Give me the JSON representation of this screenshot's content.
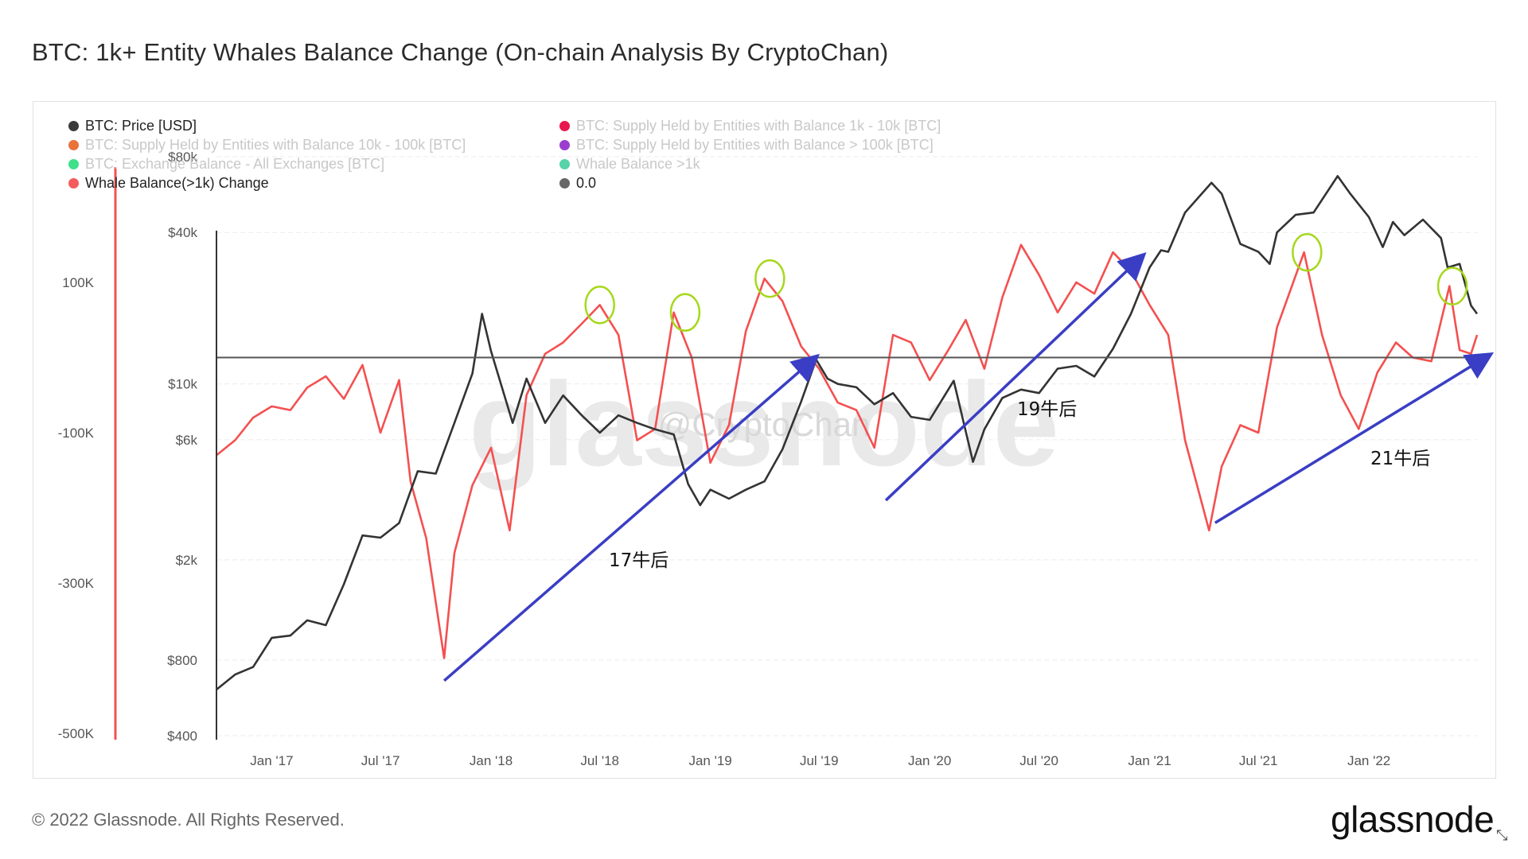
{
  "title": "BTC: 1k+ Entity Whales Balance Change (On-chain Analysis By CryptoChan)",
  "legend": {
    "left": [
      {
        "label": "BTC: Price [USD]",
        "color": "#3a3a3a",
        "faded": false
      },
      {
        "label": "BTC: Supply Held by Entities with Balance 10k - 100k [BTC]",
        "color": "#e8743b",
        "faded": true
      },
      {
        "label": "BTC: Exchange Balance - All Exchanges [BTC]",
        "color": "#3ee08a",
        "faded": true
      },
      {
        "label": "Whale Balance(>1k) Change",
        "color": "#f45b5b",
        "faded": false
      }
    ],
    "right": [
      {
        "label": "BTC: Supply Held by Entities with Balance 1k - 10k [BTC]",
        "color": "#e8174f",
        "faded": true
      },
      {
        "label": "BTC: Supply Held by Entities with Balance > 100k [BTC]",
        "color": "#9b3ecf",
        "faded": true
      },
      {
        "label": "Whale Balance >1k",
        "color": "#56d3a8",
        "faded": true
      },
      {
        "label": "0.0",
        "color": "#666666",
        "faded": false
      }
    ]
  },
  "watermark": {
    "text": "glassnode",
    "handle": "@CryptoChan"
  },
  "footer": {
    "copyright": "© 2022 Glassnode. All Rights Reserved.",
    "brand": "glassnode"
  },
  "colors": {
    "price": "#333333",
    "whale": "#f45050",
    "arrow": "#3a3ec4",
    "circle": "#a6d81c",
    "zeroline": "#555555"
  },
  "chart_data": {
    "type": "line",
    "x_ticks": [
      "Jan '17",
      "Jul '17",
      "Jan '18",
      "Jul '18",
      "Jan '19",
      "Jul '19",
      "Jan '20",
      "Jul '20",
      "Jan '21",
      "Jul '21",
      "Jan '22"
    ],
    "x_range": [
      "2016-10-01",
      "2022-06-30"
    ],
    "y_left_price": {
      "ticks": [
        "$400",
        "$800",
        "$2k",
        "$6k",
        "$10k",
        "$40k",
        "$80k"
      ],
      "values": [
        400,
        800,
        2000,
        6000,
        10000,
        40000,
        80000
      ],
      "scale": "log"
    },
    "y_left_change": {
      "ticks": [
        "100K",
        "-100K",
        "-300K",
        "-500K"
      ],
      "values": [
        100000,
        -100000,
        -300000,
        -500000
      ],
      "zero_line": 0
    },
    "series": [
      {
        "name": "BTC: Price [USD]",
        "points": [
          [
            "2016-10-01",
            610
          ],
          [
            "2016-11-01",
            700
          ],
          [
            "2016-12-01",
            750
          ],
          [
            "2017-01-01",
            980
          ],
          [
            "2017-02-01",
            1000
          ],
          [
            "2017-03-01",
            1150
          ],
          [
            "2017-04-01",
            1100
          ],
          [
            "2017-05-01",
            1600
          ],
          [
            "2017-06-01",
            2500
          ],
          [
            "2017-07-01",
            2450
          ],
          [
            "2017-08-01",
            2800
          ],
          [
            "2017-09-01",
            4500
          ],
          [
            "2017-10-01",
            4400
          ],
          [
            "2017-11-01",
            7000
          ],
          [
            "2017-12-01",
            11000
          ],
          [
            "2017-12-17",
            19000
          ],
          [
            "2018-01-01",
            13500
          ],
          [
            "2018-02-06",
            7000
          ],
          [
            "2018-03-01",
            10500
          ],
          [
            "2018-04-01",
            7000
          ],
          [
            "2018-05-01",
            9000
          ],
          [
            "2018-06-01",
            7500
          ],
          [
            "2018-07-01",
            6400
          ],
          [
            "2018-08-01",
            7500
          ],
          [
            "2018-09-01",
            7000
          ],
          [
            "2018-10-01",
            6600
          ],
          [
            "2018-11-01",
            6300
          ],
          [
            "2018-11-25",
            4000
          ],
          [
            "2018-12-15",
            3300
          ],
          [
            "2019-01-01",
            3800
          ],
          [
            "2019-02-01",
            3500
          ],
          [
            "2019-03-01",
            3800
          ],
          [
            "2019-04-01",
            4100
          ],
          [
            "2019-05-01",
            5500
          ],
          [
            "2019-06-01",
            8500
          ],
          [
            "2019-06-26",
            12500
          ],
          [
            "2019-07-15",
            10500
          ],
          [
            "2019-08-01",
            10000
          ],
          [
            "2019-09-01",
            9700
          ],
          [
            "2019-10-01",
            8300
          ],
          [
            "2019-11-01",
            9200
          ],
          [
            "2019-12-01",
            7400
          ],
          [
            "2020-01-01",
            7200
          ],
          [
            "2020-02-10",
            10300
          ],
          [
            "2020-03-13",
            4900
          ],
          [
            "2020-04-01",
            6600
          ],
          [
            "2020-05-01",
            8800
          ],
          [
            "2020-06-01",
            9500
          ],
          [
            "2020-07-01",
            9200
          ],
          [
            "2020-08-01",
            11500
          ],
          [
            "2020-09-01",
            11800
          ],
          [
            "2020-10-01",
            10700
          ],
          [
            "2020-11-01",
            13800
          ],
          [
            "2020-12-01",
            19000
          ],
          [
            "2021-01-01",
            29000
          ],
          [
            "2021-01-20",
            34000
          ],
          [
            "2021-02-01",
            33500
          ],
          [
            "2021-03-01",
            48000
          ],
          [
            "2021-04-14",
            63000
          ],
          [
            "2021-05-01",
            57000
          ],
          [
            "2021-06-01",
            36000
          ],
          [
            "2021-07-01",
            33500
          ],
          [
            "2021-07-20",
            30000
          ],
          [
            "2021-08-01",
            40000
          ],
          [
            "2021-09-01",
            47000
          ],
          [
            "2021-10-01",
            48000
          ],
          [
            "2021-11-10",
            67000
          ],
          [
            "2021-12-01",
            57000
          ],
          [
            "2022-01-01",
            46000
          ],
          [
            "2022-01-24",
            35000
          ],
          [
            "2022-02-10",
            44000
          ],
          [
            "2022-03-01",
            39000
          ],
          [
            "2022-04-01",
            45000
          ],
          [
            "2022-05-01",
            38000
          ],
          [
            "2022-05-12",
            29000
          ],
          [
            "2022-06-01",
            30000
          ],
          [
            "2022-06-20",
            20500
          ],
          [
            "2022-06-30",
            19000
          ]
        ]
      },
      {
        "name": "Whale Balance(>1k) Change",
        "points": [
          [
            "2016-10-01",
            -130000
          ],
          [
            "2016-11-01",
            -110000
          ],
          [
            "2016-12-01",
            -80000
          ],
          [
            "2017-01-01",
            -65000
          ],
          [
            "2017-02-01",
            -70000
          ],
          [
            "2017-03-01",
            -40000
          ],
          [
            "2017-04-01",
            -25000
          ],
          [
            "2017-05-01",
            -55000
          ],
          [
            "2017-06-01",
            -10000
          ],
          [
            "2017-07-01",
            -100000
          ],
          [
            "2017-08-01",
            -30000
          ],
          [
            "2017-08-20",
            -165000
          ],
          [
            "2017-09-15",
            -240000
          ],
          [
            "2017-10-15",
            -400000
          ],
          [
            "2017-11-01",
            -260000
          ],
          [
            "2017-12-01",
            -170000
          ],
          [
            "2018-01-01",
            -120000
          ],
          [
            "2018-02-01",
            -230000
          ],
          [
            "2018-03-01",
            -50000
          ],
          [
            "2018-04-01",
            5000
          ],
          [
            "2018-05-01",
            20000
          ],
          [
            "2018-06-01",
            45000
          ],
          [
            "2018-07-01",
            70000
          ],
          [
            "2018-08-01",
            30000
          ],
          [
            "2018-09-01",
            -110000
          ],
          [
            "2018-10-01",
            -95000
          ],
          [
            "2018-11-01",
            60000
          ],
          [
            "2018-12-01",
            0
          ],
          [
            "2019-01-01",
            -140000
          ],
          [
            "2019-02-01",
            -90000
          ],
          [
            "2019-03-01",
            35000
          ],
          [
            "2019-04-01",
            105000
          ],
          [
            "2019-05-01",
            75000
          ],
          [
            "2019-06-01",
            15000
          ],
          [
            "2019-07-01",
            -15000
          ],
          [
            "2019-08-01",
            -60000
          ],
          [
            "2019-09-01",
            -70000
          ],
          [
            "2019-10-01",
            -120000
          ],
          [
            "2019-11-01",
            30000
          ],
          [
            "2019-12-01",
            20000
          ],
          [
            "2020-01-01",
            -30000
          ],
          [
            "2020-02-01",
            10000
          ],
          [
            "2020-03-01",
            50000
          ],
          [
            "2020-04-01",
            -15000
          ],
          [
            "2020-05-01",
            80000
          ],
          [
            "2020-06-01",
            150000
          ],
          [
            "2020-07-01",
            110000
          ],
          [
            "2020-08-01",
            60000
          ],
          [
            "2020-09-01",
            100000
          ],
          [
            "2020-10-01",
            85000
          ],
          [
            "2020-11-01",
            140000
          ],
          [
            "2020-12-01",
            115000
          ],
          [
            "2021-01-01",
            70000
          ],
          [
            "2021-02-01",
            30000
          ],
          [
            "2021-03-01",
            -110000
          ],
          [
            "2021-04-10",
            -230000
          ],
          [
            "2021-05-01",
            -145000
          ],
          [
            "2021-06-01",
            -90000
          ],
          [
            "2021-07-01",
            -100000
          ],
          [
            "2021-08-01",
            40000
          ],
          [
            "2021-09-15",
            140000
          ],
          [
            "2021-10-15",
            30000
          ],
          [
            "2021-11-15",
            -50000
          ],
          [
            "2021-12-15",
            -95000
          ],
          [
            "2022-01-15",
            -20000
          ],
          [
            "2022-02-15",
            20000
          ],
          [
            "2022-03-15",
            0
          ],
          [
            "2022-04-15",
            -5000
          ],
          [
            "2022-05-15",
            95000
          ],
          [
            "2022-06-01",
            10000
          ],
          [
            "2022-06-20",
            5000
          ],
          [
            "2022-06-30",
            30000
          ]
        ]
      }
    ],
    "annotations": [
      {
        "text": "17牛后",
        "from": [
          "2017-10-15",
          -430000
        ],
        "to": [
          "2019-06-25",
          0
        ]
      },
      {
        "text": "19牛后",
        "from": [
          "2019-10-20",
          -190000
        ],
        "to": [
          "2020-12-20",
          135000
        ]
      },
      {
        "text": "21牛后",
        "from": [
          "2021-04-20",
          -220000
        ],
        "to": [
          "2022-07-20",
          3000
        ]
      }
    ],
    "circled_peaks": [
      [
        "2018-07-01",
        70000
      ],
      [
        "2018-11-20",
        60000
      ],
      [
        "2019-04-10",
        105000
      ],
      [
        "2021-09-20",
        140000
      ],
      [
        "2022-05-20",
        95000
      ]
    ]
  }
}
